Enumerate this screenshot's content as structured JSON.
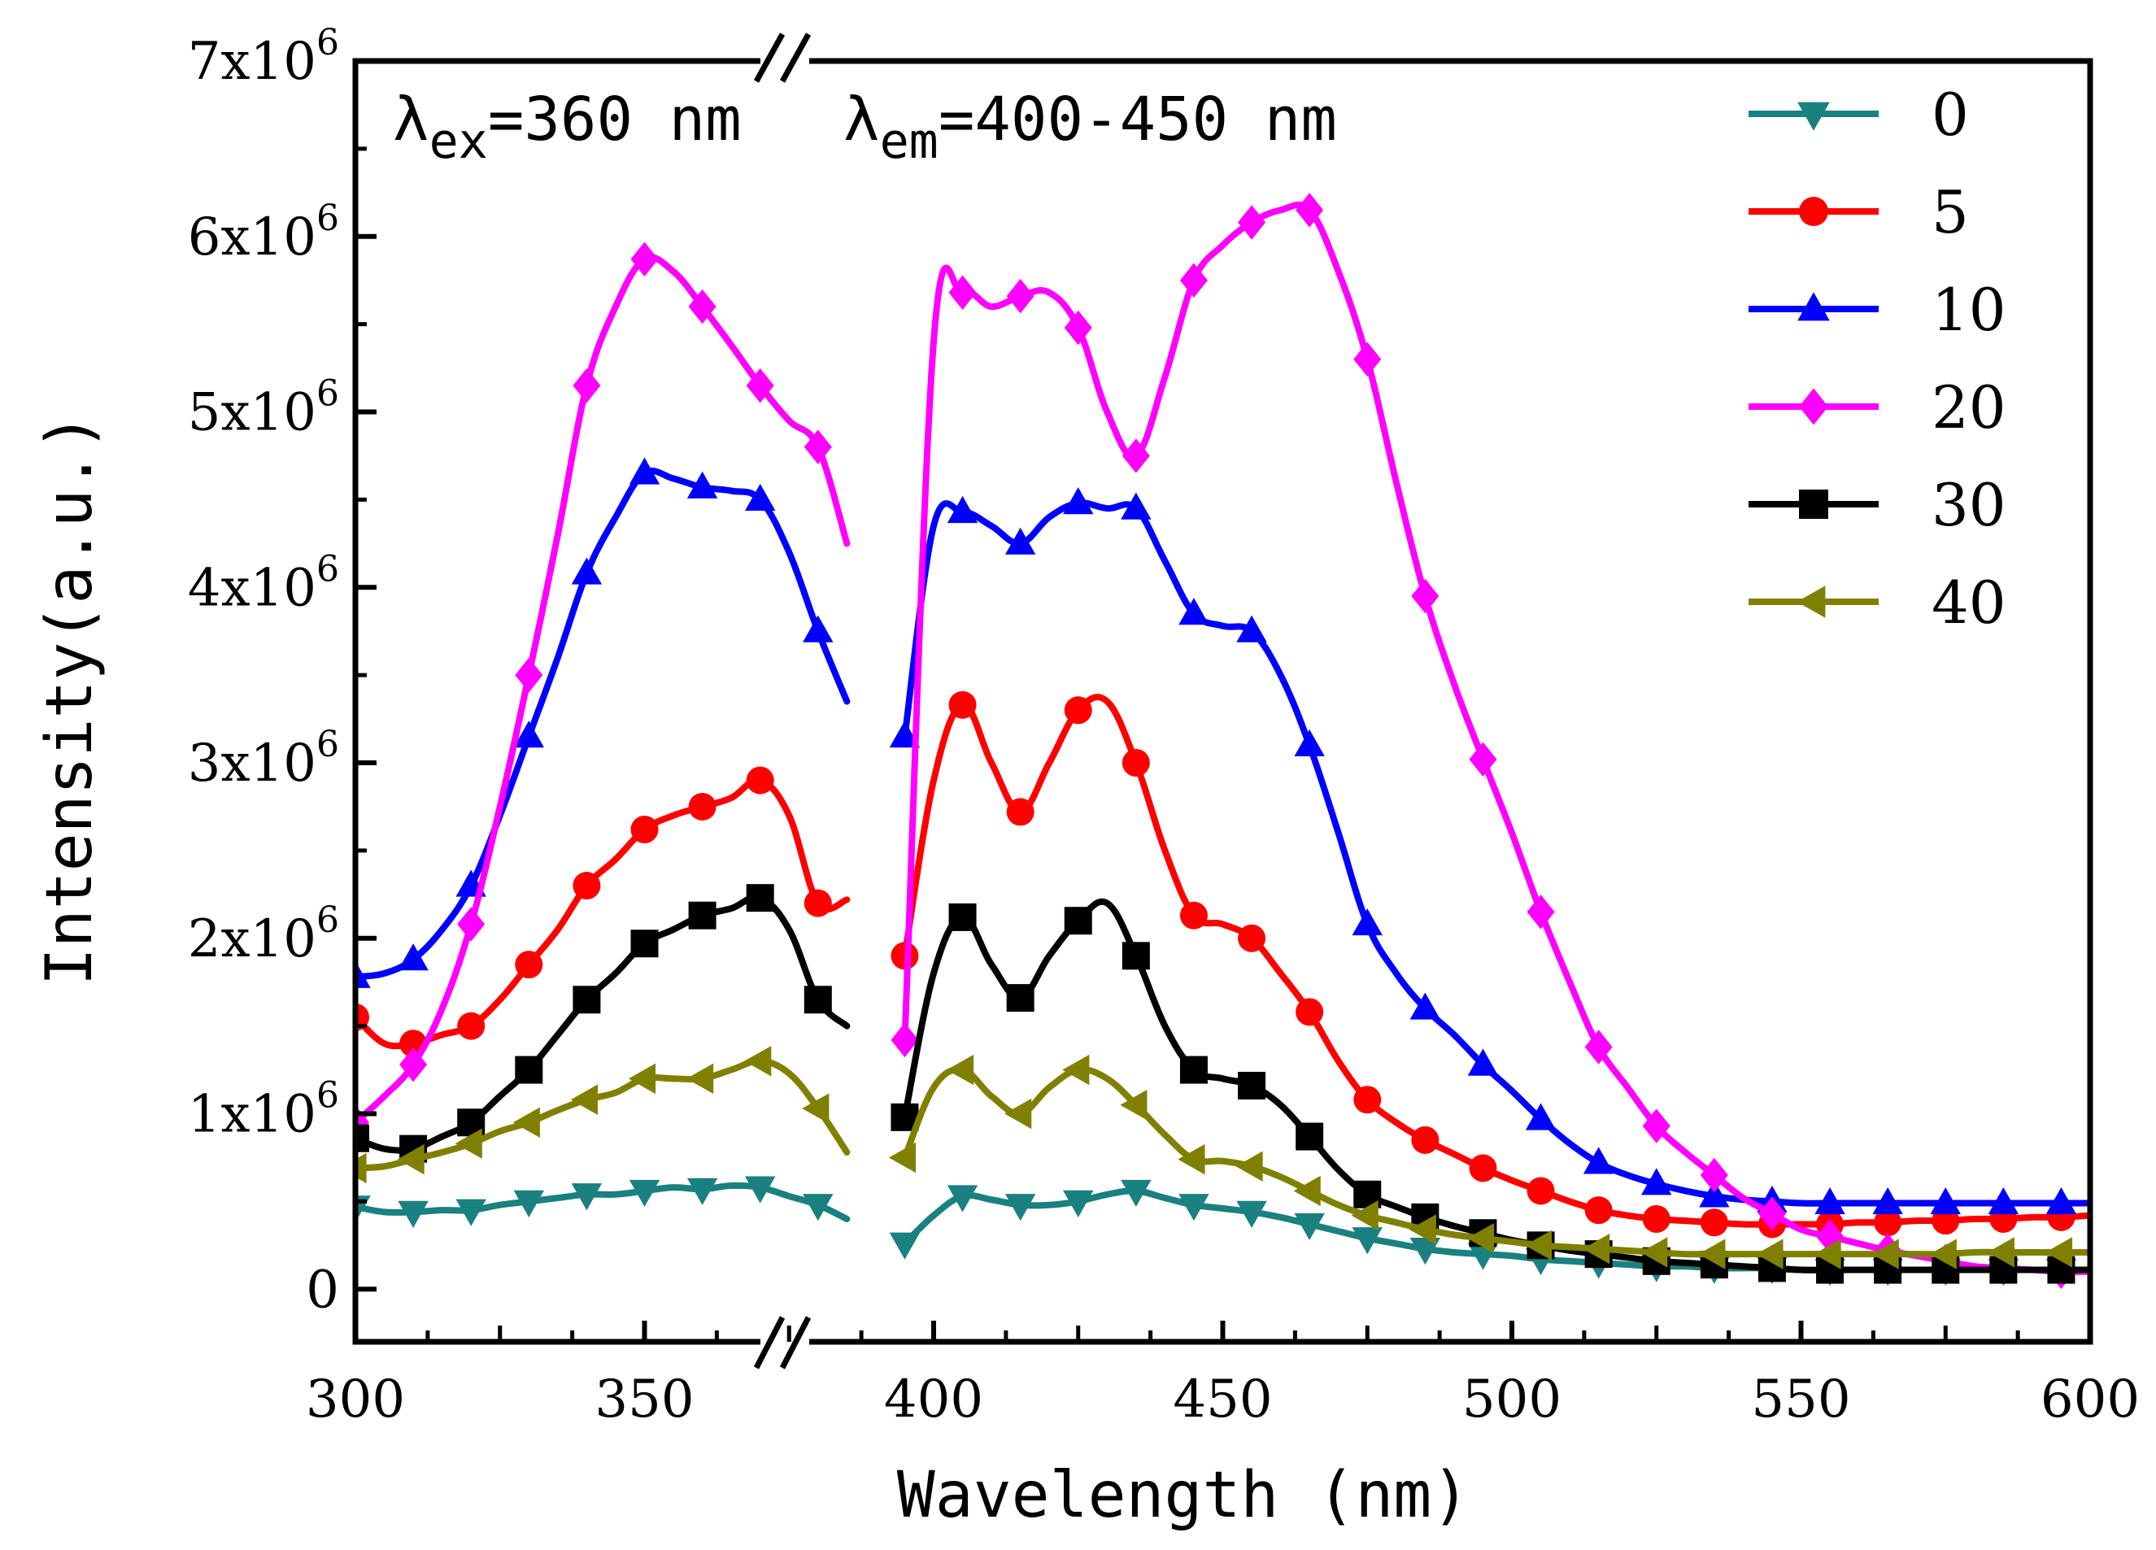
{
  "chart_data": {
    "type": "line",
    "title": "",
    "xlabel": "Wavelength (nm)",
    "ylabel": "Intensity(a.u.)",
    "xlim": [
      300,
      600
    ],
    "ylim": [
      -300000,
      7000000
    ],
    "axis_break": "385-395",
    "grid": false,
    "legend_position": "top-right",
    "x_ticks": [
      {
        "value": 300,
        "label": "300"
      },
      {
        "value": 350,
        "label": "350"
      },
      {
        "value": 400,
        "label": "400"
      },
      {
        "value": 450,
        "label": "450"
      },
      {
        "value": 500,
        "label": "500"
      },
      {
        "value": 550,
        "label": "550"
      },
      {
        "value": 600,
        "label": "600"
      }
    ],
    "y_ticks": [
      {
        "value": 0,
        "label": "0",
        "exp": ""
      },
      {
        "value": 1000000,
        "label": "1x10",
        "exp": "6"
      },
      {
        "value": 2000000,
        "label": "2x10",
        "exp": "6"
      },
      {
        "value": 3000000,
        "label": "3x10",
        "exp": "6"
      },
      {
        "value": 4000000,
        "label": "4x10",
        "exp": "6"
      },
      {
        "value": 5000000,
        "label": "5x10",
        "exp": "6"
      },
      {
        "value": 6000000,
        "label": "6x10",
        "exp": "6"
      },
      {
        "value": 7000000,
        "label": "7x10",
        "exp": "6"
      }
    ],
    "annotations": {
      "excitation": {
        "symbol": "λ",
        "sub": "ex",
        "value": "=360 nm"
      },
      "emission": {
        "symbol": "λ",
        "sub": "em",
        "value": "=400-450 nm"
      }
    },
    "series": [
      {
        "name": "0",
        "color": "#1a8080",
        "marker": "triangle-down",
        "segments": [
          {
            "x": [
              300,
              305,
              310,
              315,
              320,
              325,
              330,
              335,
              340,
              345,
              350,
              355,
              360,
              365,
              370,
              375,
              380,
              385
            ],
            "y": [
              470000,
              440000,
              440000,
              450000,
              450000,
              480000,
              500000,
              520000,
              540000,
              540000,
              560000,
              580000,
              570000,
              590000,
              580000,
              530000,
              480000,
              400000
            ]
          },
          {
            "x": [
              395,
              400,
              405,
              410,
              415,
              420,
              425,
              430,
              435,
              440,
              445,
              450,
              455,
              460,
              465,
              470,
              475,
              480,
              485,
              490,
              495,
              500,
              505,
              510,
              515,
              520,
              525,
              530,
              535,
              540,
              545,
              550,
              555,
              560,
              565,
              570,
              575,
              580,
              585,
              590,
              595,
              600
            ],
            "y": [
              260000,
              420000,
              530000,
              510000,
              480000,
              480000,
              500000,
              540000,
              560000,
              520000,
              480000,
              460000,
              440000,
              410000,
              370000,
              330000,
              290000,
              260000,
              230000,
              210000,
              200000,
              190000,
              170000,
              160000,
              150000,
              140000,
              130000,
              130000,
              120000,
              120000,
              120000,
              110000,
              110000,
              110000,
              110000,
              110000,
              110000,
              110000,
              110000,
              110000,
              110000,
              110000
            ]
          }
        ]
      },
      {
        "name": "5",
        "color": "#ff0000",
        "marker": "circle",
        "segments": [
          {
            "x": [
              300,
              305,
              310,
              315,
              320,
              325,
              330,
              335,
              340,
              345,
              350,
              355,
              360,
              365,
              370,
              375,
              380,
              385
            ],
            "y": [
              1550000,
              1400000,
              1400000,
              1450000,
              1500000,
              1650000,
              1850000,
              2050000,
              2300000,
              2450000,
              2620000,
              2700000,
              2750000,
              2800000,
              2900000,
              2700000,
              2200000,
              2220000
            ]
          },
          {
            "x": [
              395,
              400,
              405,
              410,
              415,
              420,
              425,
              430,
              435,
              440,
              445,
              450,
              455,
              460,
              465,
              470,
              475,
              480,
              485,
              490,
              495,
              500,
              505,
              510,
              515,
              520,
              525,
              530,
              535,
              540,
              545,
              550,
              555,
              560,
              565,
              570,
              575,
              580,
              585,
              590,
              595,
              600
            ],
            "y": [
              1900000,
              2900000,
              3330000,
              3000000,
              2720000,
              3000000,
              3300000,
              3350000,
              3000000,
              2500000,
              2130000,
              2080000,
              2000000,
              1800000,
              1580000,
              1300000,
              1080000,
              950000,
              850000,
              770000,
              690000,
              620000,
              560000,
              500000,
              450000,
              420000,
              400000,
              390000,
              380000,
              370000,
              370000,
              370000,
              370000,
              380000,
              380000,
              390000,
              390000,
              400000,
              400000,
              410000,
              410000,
              420000
            ]
          }
        ]
      },
      {
        "name": "10",
        "color": "#0000ff",
        "marker": "triangle-up",
        "segments": [
          {
            "x": [
              300,
              305,
              310,
              315,
              320,
              325,
              330,
              335,
              340,
              345,
              350,
              355,
              360,
              365,
              370,
              375,
              380,
              385
            ],
            "y": [
              1780000,
              1800000,
              1880000,
              2050000,
              2300000,
              2700000,
              3150000,
              3600000,
              4080000,
              4400000,
              4650000,
              4620000,
              4570000,
              4550000,
              4500000,
              4200000,
              3750000,
              3350000
            ]
          },
          {
            "x": [
              395,
              400,
              405,
              410,
              415,
              420,
              425,
              430,
              435,
              440,
              445,
              450,
              455,
              460,
              465,
              470,
              475,
              480,
              485,
              490,
              495,
              500,
              505,
              510,
              515,
              520,
              525,
              530,
              535,
              540,
              545,
              550,
              555,
              560,
              565,
              570,
              575,
              580,
              585,
              590,
              595,
              600
            ],
            "y": [
              3150000,
              4350000,
              4430000,
              4350000,
              4250000,
              4400000,
              4480000,
              4450000,
              4450000,
              4150000,
              3850000,
              3780000,
              3750000,
              3500000,
              3100000,
              2600000,
              2080000,
              1800000,
              1600000,
              1450000,
              1280000,
              1130000,
              970000,
              830000,
              720000,
              650000,
              600000,
              560000,
              530000,
              510000,
              500000,
              490000,
              490000,
              490000,
              490000,
              490000,
              490000,
              490000,
              490000,
              490000,
              490000,
              490000
            ]
          }
        ]
      },
      {
        "name": "20",
        "color": "#ff00ff",
        "marker": "diamond",
        "segments": [
          {
            "x": [
              300,
              305,
              310,
              315,
              320,
              325,
              330,
              335,
              340,
              345,
              350,
              355,
              360,
              365,
              370,
              375,
              380,
              385
            ],
            "y": [
              950000,
              1100000,
              1280000,
              1600000,
              2080000,
              2750000,
              3500000,
              4300000,
              5150000,
              5600000,
              5870000,
              5800000,
              5600000,
              5380000,
              5150000,
              4950000,
              4800000,
              4250000
            ]
          },
          {
            "x": [
              395,
              400,
              405,
              410,
              415,
              420,
              425,
              430,
              435,
              440,
              445,
              450,
              455,
              460,
              465,
              470,
              475,
              480,
              485,
              490,
              495,
              500,
              505,
              510,
              515,
              520,
              525,
              530,
              535,
              540,
              545,
              550,
              555,
              560,
              565,
              570,
              575,
              580,
              585,
              590,
              595,
              600
            ],
            "y": [
              1420000,
              5400000,
              5680000,
              5600000,
              5660000,
              5680000,
              5480000,
              5000000,
              4750000,
              5200000,
              5750000,
              5950000,
              6080000,
              6150000,
              6150000,
              5800000,
              5300000,
              4600000,
              3950000,
              3450000,
              3020000,
              2600000,
              2150000,
              1750000,
              1380000,
              1150000,
              930000,
              780000,
              650000,
              520000,
              430000,
              340000,
              300000,
              260000,
              220000,
              190000,
              160000,
              130000,
              120000,
              110000,
              100000,
              100000
            ]
          }
        ]
      },
      {
        "name": "30",
        "color": "#000000",
        "marker": "square",
        "segments": [
          {
            "x": [
              300,
              305,
              310,
              315,
              320,
              325,
              330,
              335,
              340,
              345,
              350,
              355,
              360,
              365,
              370,
              375,
              380,
              385
            ],
            "y": [
              860000,
              800000,
              800000,
              870000,
              950000,
              1100000,
              1250000,
              1450000,
              1650000,
              1800000,
              1970000,
              2050000,
              2130000,
              2170000,
              2230000,
              2050000,
              1650000,
              1500000
            ]
          },
          {
            "x": [
              395,
              400,
              405,
              410,
              415,
              420,
              425,
              430,
              435,
              440,
              445,
              450,
              455,
              460,
              465,
              470,
              475,
              480,
              485,
              490,
              495,
              500,
              505,
              510,
              515,
              520,
              525,
              530,
              535,
              540,
              545,
              550,
              555,
              560,
              565,
              570,
              575,
              580,
              585,
              590,
              595,
              600
            ],
            "y": [
              980000,
              1800000,
              2120000,
              1850000,
              1660000,
              1900000,
              2100000,
              2200000,
              1900000,
              1500000,
              1250000,
              1200000,
              1160000,
              1050000,
              870000,
              680000,
              540000,
              470000,
              410000,
              360000,
              320000,
              280000,
              250000,
              220000,
              200000,
              180000,
              160000,
              150000,
              140000,
              130000,
              120000,
              110000,
              110000,
              110000,
              110000,
              110000,
              110000,
              110000,
              110000,
              110000,
              110000,
              110000
            ]
          }
        ]
      },
      {
        "name": "40",
        "color": "#808000",
        "marker": "triangle-left",
        "segments": [
          {
            "x": [
              300,
              305,
              310,
              315,
              320,
              325,
              330,
              335,
              340,
              345,
              350,
              355,
              360,
              365,
              370,
              375,
              380,
              385
            ],
            "y": [
              690000,
              700000,
              740000,
              780000,
              830000,
              900000,
              950000,
              1020000,
              1080000,
              1120000,
              1200000,
              1200000,
              1200000,
              1250000,
              1300000,
              1230000,
              1030000,
              780000
            ]
          },
          {
            "x": [
              395,
              400,
              405,
              410,
              415,
              420,
              425,
              430,
              435,
              440,
              445,
              450,
              455,
              460,
              465,
              470,
              475,
              480,
              485,
              490,
              495,
              500,
              505,
              510,
              515,
              520,
              525,
              530,
              535,
              540,
              545,
              550,
              555,
              560,
              565,
              570,
              575,
              580,
              585,
              590,
              595,
              600
            ],
            "y": [
              750000,
              1150000,
              1250000,
              1100000,
              1000000,
              1150000,
              1250000,
              1200000,
              1050000,
              880000,
              740000,
              730000,
              700000,
              640000,
              560000,
              480000,
              420000,
              380000,
              340000,
              310000,
              290000,
              270000,
              250000,
              240000,
              230000,
              220000,
              210000,
              200000,
              200000,
              200000,
              200000,
              200000,
              200000,
              200000,
              200000,
              200000,
              200000,
              210000,
              210000,
              210000,
              210000,
              210000
            ]
          }
        ]
      }
    ]
  }
}
